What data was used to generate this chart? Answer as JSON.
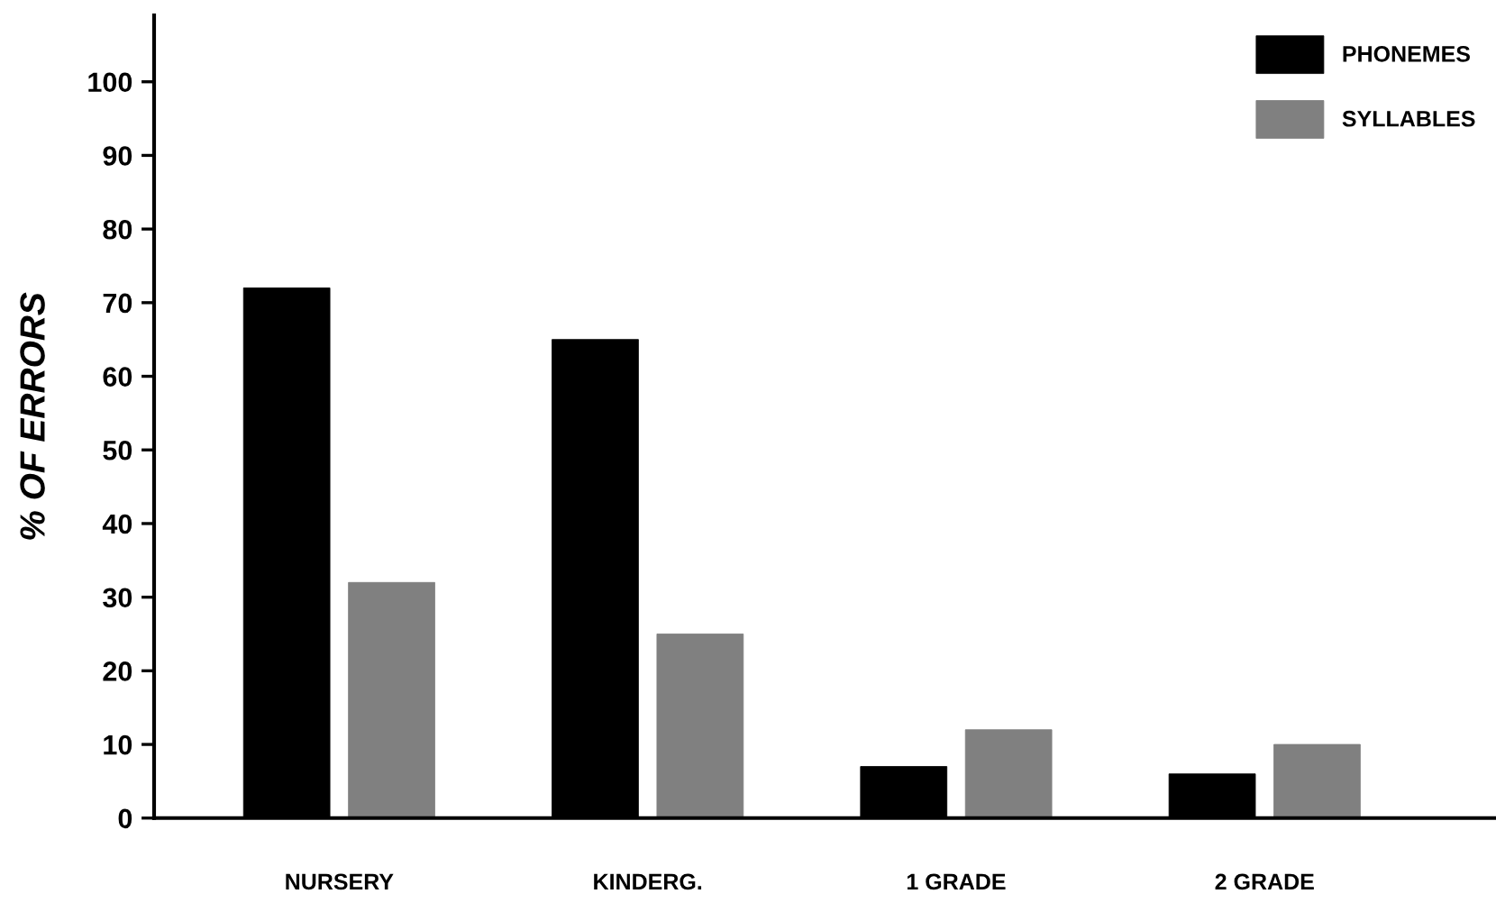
{
  "chart_data": {
    "type": "bar",
    "ylabel": "% OF ERRORS",
    "categories": [
      "NURSERY",
      "KINDERG.",
      "1 GRADE",
      "2 GRADE"
    ],
    "series": [
      {
        "name": "PHONEMES",
        "color": "#000000",
        "values": [
          72,
          65,
          7,
          6
        ]
      },
      {
        "name": "SYLLABLES",
        "color": "#808080",
        "values": [
          32,
          25,
          12,
          10
        ]
      }
    ],
    "ylim": [
      0,
      109
    ],
    "yticks": [
      0,
      10,
      20,
      30,
      40,
      50,
      60,
      70,
      80,
      90,
      100
    ],
    "grid": false,
    "legend": "top right"
  }
}
